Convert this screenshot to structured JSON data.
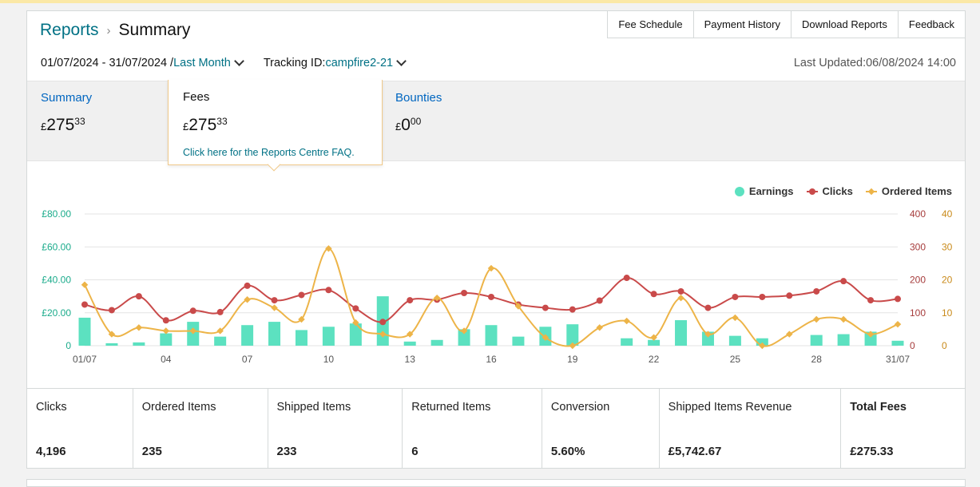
{
  "breadcrumb": {
    "parent": "Reports",
    "current": "Summary"
  },
  "toolbar": {
    "buttons": [
      "Fee Schedule",
      "Payment History",
      "Download Reports",
      "Feedback"
    ]
  },
  "filters": {
    "date_range": "01/07/2024 - 31/07/2024 /",
    "period": "Last Month",
    "tracking_label": "Tracking ID:",
    "tracking_id": "campfire2-21",
    "last_updated": "Last Updated:06/08/2024 14:00"
  },
  "tabs": [
    {
      "title": "Summary",
      "currency": "£",
      "pounds": "275",
      "pence": "33"
    },
    {
      "title": "Fees",
      "currency": "£",
      "pounds": "275",
      "pence": "33"
    },
    {
      "title": "Bounties",
      "currency": "£",
      "pounds": "0",
      "pence": "00"
    }
  ],
  "popover": {
    "faq_link": "Click here for the Reports Centre FAQ."
  },
  "colors": {
    "earnings": "#5ce1c0",
    "clicks": "#c94a4a",
    "ordered_items": "#edb448",
    "teal_axis": "#1aab8b",
    "link": "#007185"
  },
  "chart_data": {
    "type": "bar+line",
    "x": [
      "01/07",
      "02/07",
      "03/07",
      "04/07",
      "05/07",
      "06/07",
      "07/07",
      "08/07",
      "09/07",
      "10/07",
      "11/07",
      "12/07",
      "13/07",
      "14/07",
      "15/07",
      "16/07",
      "17/07",
      "18/07",
      "19/07",
      "20/07",
      "21/07",
      "22/07",
      "23/07",
      "24/07",
      "25/07",
      "26/07",
      "27/07",
      "28/07",
      "29/07",
      "30/07",
      "31/07"
    ],
    "x_tick_labels": [
      "01/07",
      "04",
      "07",
      "10",
      "13",
      "16",
      "19",
      "22",
      "25",
      "28",
      "31/07"
    ],
    "legend": [
      "Earnings",
      "Clicks",
      "Ordered Items"
    ],
    "legend_position": "top-right",
    "series": [
      {
        "name": "Earnings",
        "kind": "bar",
        "axis": "left",
        "values": [
          17,
          1.5,
          2,
          7.5,
          14.5,
          5.5,
          12.5,
          14.5,
          9.5,
          11.5,
          13.5,
          30,
          2.5,
          3.5,
          10,
          12.5,
          5.5,
          11.5,
          13,
          0,
          4.5,
          3.5,
          15.5,
          8.5,
          6,
          4.5,
          0,
          6.5,
          7,
          8.5,
          3
        ]
      },
      {
        "name": "Clicks",
        "kind": "line",
        "axis": "right",
        "values": [
          125,
          108,
          150,
          77,
          106,
          102,
          182,
          138,
          154,
          169,
          113,
          72,
          138,
          140,
          160,
          148,
          125,
          115,
          110,
          137,
          206,
          157,
          165,
          115,
          148,
          148,
          152,
          165,
          196,
          138,
          142
        ]
      },
      {
        "name": "Ordered Items",
        "kind": "line",
        "axis": "right2",
        "values": [
          18.5,
          3.5,
          5.5,
          4.5,
          4.5,
          4.5,
          14,
          11.5,
          8,
          29.5,
          7,
          3.5,
          3.5,
          14.5,
          4.5,
          23.5,
          12,
          2.5,
          0,
          5.5,
          7.5,
          2.5,
          14.5,
          3.5,
          8.5,
          0,
          3.5,
          8,
          8,
          3.5,
          6.5
        ]
      }
    ],
    "y_left": {
      "ticks": [
        "0",
        "£20.00",
        "£40.00",
        "£60.00",
        "£80.00"
      ],
      "range": [
        0,
        80
      ]
    },
    "y_right": {
      "ticks": [
        "0",
        "100",
        "200",
        "300",
        "400"
      ],
      "range": [
        0,
        400
      ]
    },
    "y_right2": {
      "ticks": [
        "0",
        "10",
        "20",
        "30",
        "40"
      ],
      "range": [
        0,
        40
      ]
    },
    "grid": true
  },
  "stats": [
    {
      "label": "Clicks",
      "value": "4,196"
    },
    {
      "label": "Ordered Items",
      "value": "235"
    },
    {
      "label": "Shipped Items",
      "value": "233"
    },
    {
      "label": "Returned Items",
      "value": "6"
    },
    {
      "label": "Conversion",
      "value": "5.60%"
    },
    {
      "label": "Shipped Items Revenue",
      "value": "£5,742.67"
    },
    {
      "label": "Total Fees",
      "value": "£275.33",
      "bold": true
    }
  ]
}
